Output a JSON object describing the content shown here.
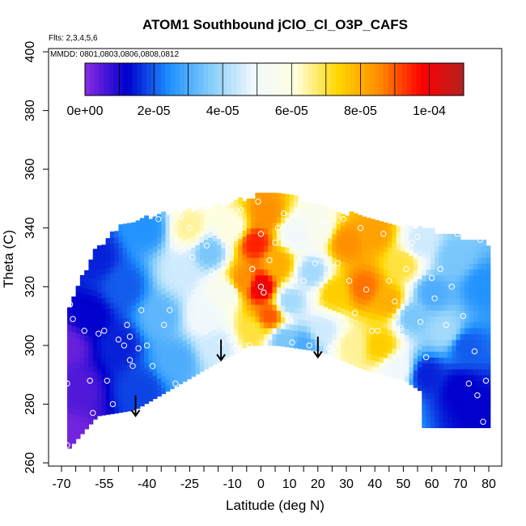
{
  "chart_data": {
    "type": "heatmap",
    "title": "ATOM1 Southbound jClO_Cl_O3P_CAFS",
    "flights_note": "Flts: 2,3,4,5,6",
    "dates_note": "MMDD: 0801,0803,0806,0808,0812",
    "xlabel": "Latitude (deg N)",
    "ylabel": "Theta (C)",
    "xlim": [
      -70,
      80
    ],
    "ylim": [
      260,
      400
    ],
    "x_ticks": [
      -70,
      -55,
      -40,
      -25,
      -10,
      0,
      10,
      20,
      30,
      40,
      50,
      60,
      70,
      80
    ],
    "y_ticks": [
      260,
      280,
      300,
      320,
      340,
      360,
      380,
      400
    ],
    "colorbar": {
      "min": 0,
      "max": 0.00011,
      "tick_values": [
        0,
        2e-05,
        4e-05,
        6e-05,
        8e-05,
        0.0001
      ],
      "tick_labels": [
        "0e+00",
        "2e-05",
        "4e-05",
        "6e-05",
        "8e-05",
        "1e-04"
      ],
      "colors": [
        "#8a2be2",
        "#0000cd",
        "#1e90ff",
        "#87cefa",
        "#f0f8ff",
        "#ffffe0",
        "#ffd700",
        "#ff8c00",
        "#ff0000",
        "#b22222"
      ]
    },
    "bottom_boundary": [
      [
        -68,
        265
      ],
      [
        -58,
        276
      ],
      [
        -45,
        278
      ],
      [
        -20,
        292
      ],
      [
        -5,
        300
      ],
      [
        5,
        300
      ],
      [
        20,
        298
      ],
      [
        35,
        292
      ],
      [
        50,
        288
      ],
      [
        56,
        284
      ],
      [
        56,
        272
      ],
      [
        78,
        272
      ]
    ],
    "top_boundary": [
      [
        -68,
        312
      ],
      [
        -60,
        330
      ],
      [
        -50,
        340
      ],
      [
        -35,
        344
      ],
      [
        -20,
        346
      ],
      [
        -10,
        348
      ],
      [
        0,
        351
      ],
      [
        10,
        350
      ],
      [
        20,
        346
      ],
      [
        30,
        344
      ],
      [
        40,
        342
      ],
      [
        50,
        340
      ],
      [
        60,
        338
      ],
      [
        70,
        336
      ],
      [
        78,
        334
      ]
    ],
    "anchors": [
      {
        "x": -68,
        "y": 270,
        "v": 2e-06
      },
      {
        "x": -68,
        "y": 300,
        "v": 3e-06
      },
      {
        "x": -65,
        "y": 285,
        "v": 5e-06
      },
      {
        "x": -60,
        "y": 310,
        "v": 1.2e-05
      },
      {
        "x": -58,
        "y": 330,
        "v": 1.5e-05
      },
      {
        "x": -50,
        "y": 300,
        "v": 1.5e-05
      },
      {
        "x": -48,
        "y": 320,
        "v": 2e-05
      },
      {
        "x": -42,
        "y": 285,
        "v": 1.8e-05
      },
      {
        "x": -40,
        "y": 340,
        "v": 2.5e-05
      },
      {
        "x": -35,
        "y": 310,
        "v": 3.2e-05
      },
      {
        "x": -30,
        "y": 295,
        "v": 3e-05
      },
      {
        "x": -28,
        "y": 325,
        "v": 4.5e-05
      },
      {
        "x": -25,
        "y": 340,
        "v": 6.5e-05
      },
      {
        "x": -20,
        "y": 310,
        "v": 5e-05
      },
      {
        "x": -18,
        "y": 332,
        "v": 3.5e-05
      },
      {
        "x": -15,
        "y": 300,
        "v": 4.5e-05
      },
      {
        "x": -12,
        "y": 318,
        "v": 5.5e-05
      },
      {
        "x": -10,
        "y": 340,
        "v": 6e-05
      },
      {
        "x": -6,
        "y": 322,
        "v": 8.5e-05
      },
      {
        "x": -3,
        "y": 305,
        "v": 7e-05
      },
      {
        "x": -2,
        "y": 335,
        "v": 9.5e-05
      },
      {
        "x": 0,
        "y": 320,
        "v": 0.000102
      },
      {
        "x": 2,
        "y": 345,
        "v": 8.5e-05
      },
      {
        "x": 3,
        "y": 310,
        "v": 9e-05
      },
      {
        "x": 6,
        "y": 328,
        "v": 8e-05
      },
      {
        "x": 8,
        "y": 302,
        "v": 3.5e-05
      },
      {
        "x": 10,
        "y": 315,
        "v": 4e-05
      },
      {
        "x": 12,
        "y": 338,
        "v": 5e-05
      },
      {
        "x": 15,
        "y": 300,
        "v": 3e-05
      },
      {
        "x": 18,
        "y": 325,
        "v": 4e-05
      },
      {
        "x": 20,
        "y": 340,
        "v": 5.5e-05
      },
      {
        "x": 22,
        "y": 305,
        "v": 4.5e-05
      },
      {
        "x": 26,
        "y": 318,
        "v": 7.5e-05
      },
      {
        "x": 30,
        "y": 335,
        "v": 8.5e-05
      },
      {
        "x": 32,
        "y": 300,
        "v": 6.5e-05
      },
      {
        "x": 36,
        "y": 320,
        "v": 8.8e-05
      },
      {
        "x": 40,
        "y": 338,
        "v": 8.2e-05
      },
      {
        "x": 42,
        "y": 300,
        "v": 7.5e-05
      },
      {
        "x": 45,
        "y": 315,
        "v": 8e-05
      },
      {
        "x": 48,
        "y": 292,
        "v": 5e-05
      },
      {
        "x": 50,
        "y": 328,
        "v": 7e-05
      },
      {
        "x": 53,
        "y": 310,
        "v": 3.5e-05
      },
      {
        "x": 56,
        "y": 335,
        "v": 4.5e-05
      },
      {
        "x": 58,
        "y": 290,
        "v": 1.5e-05
      },
      {
        "x": 60,
        "y": 318,
        "v": 3e-05
      },
      {
        "x": 65,
        "y": 305,
        "v": 4e-05
      },
      {
        "x": 68,
        "y": 330,
        "v": 3.5e-05
      },
      {
        "x": 70,
        "y": 285,
        "v": 1.2e-05
      },
      {
        "x": 72,
        "y": 300,
        "v": 2e-05
      },
      {
        "x": 76,
        "y": 278,
        "v": 1.2e-05
      },
      {
        "x": 78,
        "y": 320,
        "v": 2.5e-05
      }
    ],
    "sample_points": [
      [
        -68,
        266
      ],
      [
        -68,
        287
      ],
      [
        -67,
        314
      ],
      [
        -66,
        309
      ],
      [
        -62,
        305
      ],
      [
        -60,
        288
      ],
      [
        -59,
        277
      ],
      [
        -58,
        340
      ],
      [
        -57,
        304
      ],
      [
        -55,
        305
      ],
      [
        -54,
        288
      ],
      [
        -52,
        280
      ],
      [
        -50,
        302
      ],
      [
        -48,
        300
      ],
      [
        -47,
        307
      ],
      [
        -46,
        303
      ],
      [
        -46,
        295
      ],
      [
        -45,
        293
      ],
      [
        -44,
        277
      ],
      [
        -43,
        299
      ],
      [
        -42,
        312
      ],
      [
        -40,
        300
      ],
      [
        -38,
        293
      ],
      [
        -36,
        343
      ],
      [
        -34,
        307
      ],
      [
        -32,
        312
      ],
      [
        -30,
        287
      ],
      [
        -28,
        344
      ],
      [
        -25,
        340
      ],
      [
        -24,
        330
      ],
      [
        -21,
        346
      ],
      [
        -19,
        334
      ],
      [
        -17,
        325
      ],
      [
        -14,
        301
      ],
      [
        -11,
        302
      ],
      [
        -9,
        299
      ],
      [
        -7,
        346
      ],
      [
        -4,
        300
      ],
      [
        -3,
        326
      ],
      [
        -1,
        349
      ],
      [
        0,
        338
      ],
      [
        0,
        320
      ],
      [
        1,
        318
      ],
      [
        3,
        329
      ],
      [
        5,
        335
      ],
      [
        6,
        340
      ],
      [
        8,
        345
      ],
      [
        10,
        309
      ],
      [
        11,
        301
      ],
      [
        13,
        344
      ],
      [
        15,
        322
      ],
      [
        17,
        300
      ],
      [
        18,
        341
      ],
      [
        19,
        328
      ],
      [
        20,
        317
      ],
      [
        22,
        342
      ],
      [
        24,
        299
      ],
      [
        27,
        328
      ],
      [
        29,
        343
      ],
      [
        31,
        322
      ],
      [
        33,
        311
      ],
      [
        35,
        340
      ],
      [
        37,
        319
      ],
      [
        39,
        305
      ],
      [
        41,
        305
      ],
      [
        43,
        338
      ],
      [
        45,
        322
      ],
      [
        47,
        315
      ],
      [
        49,
        306
      ],
      [
        51,
        326
      ],
      [
        53,
        335
      ],
      [
        55,
        337
      ],
      [
        56,
        308
      ],
      [
        58,
        296
      ],
      [
        60,
        323
      ],
      [
        61,
        316
      ],
      [
        63,
        326
      ],
      [
        65,
        307
      ],
      [
        67,
        320
      ],
      [
        69,
        338
      ],
      [
        71,
        310
      ],
      [
        73,
        287
      ],
      [
        75,
        298
      ],
      [
        76,
        283
      ],
      [
        77,
        336
      ],
      [
        78,
        274
      ],
      [
        79,
        288
      ]
    ],
    "arrows": [
      {
        "x": -44,
        "y_top": 283,
        "y_bottom": 276
      },
      {
        "x": -14,
        "y_top": 302,
        "y_bottom": 295
      },
      {
        "x": 20,
        "y_top": 303,
        "y_bottom": 296
      }
    ]
  }
}
